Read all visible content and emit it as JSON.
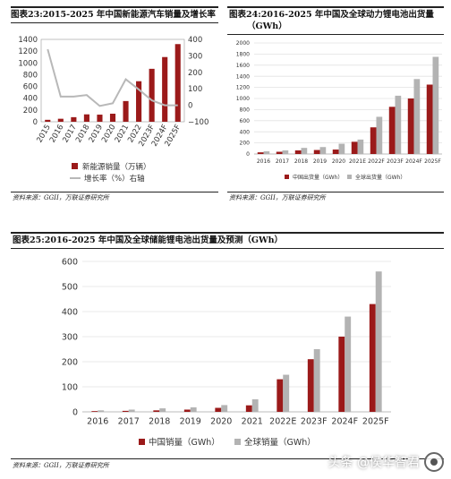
{
  "charts": {
    "c23": {
      "title": "图表23:2015-2025 年中国新能源汽车销量及增长率",
      "source": "资料来源：GGII，万联证券研究所",
      "legend_bar": "新能源销量（万辆）",
      "legend_line": "增长率（%）右轴"
    },
    "c24": {
      "title_line1": "图表24:2016-2025  年中国及全球动力锂电池出货量",
      "title_line2": "（GWh）",
      "source": "资料来源：GGII，万联证券研究所",
      "legend_cn": "中国出货量（GWh）",
      "legend_gl": "全球出货量（GWh）"
    },
    "c25": {
      "title": "图表25:2016-2025 年中国及全球储能锂电池出货量及预测（GWh）",
      "source": "资料来源：GGII，万联证券研究所",
      "legend_cn": "中国销量（GWh）",
      "legend_gl": "全球销量（GWh）"
    }
  },
  "watermark": "头条 @侯华智君",
  "colors": {
    "china": "#9b1a1a",
    "global": "#b3b3b3",
    "line": "#b8b8b8"
  },
  "chart_data": [
    {
      "type": "bar",
      "id": "c23",
      "categories": [
        "2015",
        "2016",
        "2017",
        "2018",
        "2019",
        "2020",
        "2021",
        "2022",
        "2023F",
        "2024F",
        "2025F"
      ],
      "series": [
        {
          "name": "新能源销量（万辆）",
          "values": [
            33,
            51,
            78,
            126,
            121,
            137,
            352,
            689,
            900,
            1100,
            1320
          ],
          "axis": "left"
        },
        {
          "name": "增长率（%）右轴",
          "values": [
            340,
            53,
            53,
            62,
            -4,
            12,
            158,
            96,
            30,
            0,
            0
          ],
          "axis": "right",
          "type": "line"
        }
      ],
      "ylim_left": [
        0,
        1400
      ],
      "yticks_left": [
        0,
        200,
        400,
        600,
        800,
        1000,
        1200,
        1400
      ],
      "ylim_right": [
        -100,
        400
      ],
      "yticks_right": [
        -100,
        0,
        100,
        200,
        300,
        400
      ],
      "legend": "bottom",
      "grid": false
    },
    {
      "type": "bar",
      "id": "c24",
      "categories": [
        "2016",
        "2017",
        "2018",
        "2019",
        "2020",
        "2021E",
        "2022F",
        "2023F",
        "2024F",
        "2025F"
      ],
      "series": [
        {
          "name": "中国出货量（GWh）",
          "values": [
            30,
            40,
            65,
            72,
            80,
            220,
            480,
            850,
            1000,
            1250
          ]
        },
        {
          "name": "全球出货量（GWh）",
          "values": [
            48,
            65,
            110,
            125,
            185,
            260,
            670,
            1050,
            1350,
            1750
          ]
        }
      ],
      "ylim": [
        0,
        2000
      ],
      "yticks": [
        0,
        200,
        400,
        600,
        800,
        1000,
        1200,
        1400,
        1600,
        1800,
        2000
      ],
      "legend": "bottom",
      "grid": true
    },
    {
      "type": "bar",
      "id": "c25",
      "categories": [
        "2016",
        "2017",
        "2018",
        "2019",
        "2020",
        "2021",
        "2022E",
        "2023F",
        "2024F",
        "2025F"
      ],
      "series": [
        {
          "name": "中国销量（GWh）",
          "values": [
            3,
            4,
            6,
            9,
            16,
            26,
            130,
            210,
            300,
            430
          ]
        },
        {
          "name": "全球销量（GWh）",
          "values": [
            6,
            9,
            14,
            18,
            27,
            50,
            148,
            250,
            380,
            560
          ]
        }
      ],
      "ylim": [
        0,
        600
      ],
      "yticks": [
        0,
        100,
        200,
        300,
        400,
        500,
        600
      ],
      "legend": "bottom",
      "grid": true
    }
  ]
}
